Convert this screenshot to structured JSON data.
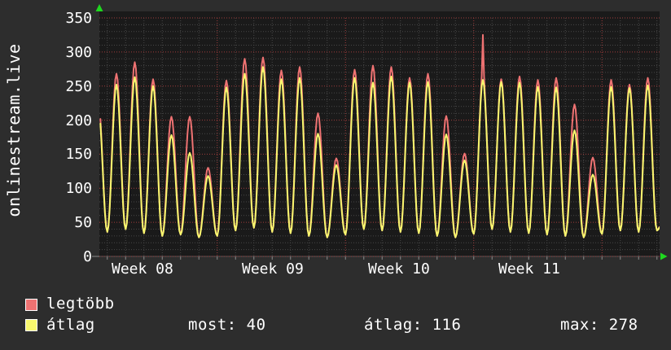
{
  "vertical_label": "onlinestream.live",
  "colors": {
    "page_bg": "#2d2d2d",
    "plot_bg": "#1a1a1a",
    "grid_major": "#a03c3c",
    "grid_minor": "#474747",
    "tick": "#8a8a8a",
    "axis_line": "#555555",
    "axis_arrow": "#1fd81f",
    "text": "#ffffff",
    "series_max": "#ee7272",
    "series_avg": "#f7f76e"
  },
  "y_axis": {
    "ticks": [
      "350",
      "300",
      "250",
      "200",
      "150",
      "100",
      "50",
      "0"
    ]
  },
  "x_axis": {
    "labels": [
      "Week 08",
      "Week 09",
      "Week 10",
      "Week 11"
    ]
  },
  "legend": {
    "items": [
      {
        "label": "legtöbb",
        "color": "#ee7272"
      },
      {
        "label": "átlag",
        "color": "#f7f76e"
      }
    ]
  },
  "stats": [
    {
      "label": "most",
      "value": 40,
      "text": "most: 40"
    },
    {
      "label": "átlag",
      "value": 116,
      "text": "átlag: 116"
    },
    {
      "label": "max",
      "value": 278,
      "text": "max: 278"
    }
  ],
  "chart_data": {
    "type": "line",
    "title": "",
    "vertical_label": "onlinestream.live",
    "xlabel": "",
    "ylabel": "onlinestream.live",
    "ylim": [
      0,
      350
    ],
    "y_tick_step": 50,
    "y_minor_step": 10,
    "x_labels": [
      "Week 08",
      "Week 09",
      "Week 10",
      "Week 11"
    ],
    "grid": true,
    "legend_position": "bottom-left",
    "series": [
      {
        "name": "legtöbb",
        "role": "maximum",
        "color": "#ee7272"
      },
      {
        "name": "átlag",
        "role": "average",
        "color": "#f7f76e"
      }
    ],
    "summary": {
      "most": 40,
      "átlag": 116,
      "max": 278
    },
    "days_per_week": 7,
    "days": [
      {
        "max": 230,
        "avg": 222
      },
      {
        "max": 268,
        "avg": 252
      },
      {
        "max": 285,
        "avg": 263
      },
      {
        "max": 260,
        "avg": 250
      },
      {
        "max": 205,
        "avg": 178
      },
      {
        "max": 205,
        "avg": 152
      },
      {
        "max": 130,
        "avg": 118
      },
      {
        "max": 258,
        "avg": 248
      },
      {
        "max": 290,
        "avg": 268
      },
      {
        "max": 292,
        "avg": 278
      },
      {
        "max": 273,
        "avg": 260
      },
      {
        "max": 278,
        "avg": 262
      },
      {
        "max": 210,
        "avg": 180
      },
      {
        "max": 144,
        "avg": 134
      },
      {
        "max": 274,
        "avg": 262
      },
      {
        "max": 280,
        "avg": 255
      },
      {
        "max": 278,
        "avg": 264
      },
      {
        "max": 262,
        "avg": 255
      },
      {
        "max": 268,
        "avg": 256
      },
      {
        "max": 206,
        "avg": 179
      },
      {
        "max": 151,
        "avg": 141
      },
      {
        "max": 325,
        "avg": 259,
        "shoulder": 265
      },
      {
        "max": 260,
        "avg": 256
      },
      {
        "max": 264,
        "avg": 255
      },
      {
        "max": 259,
        "avg": 249
      },
      {
        "max": 262,
        "avg": 248
      },
      {
        "max": 223,
        "avg": 185
      },
      {
        "max": 145,
        "avg": 120
      },
      {
        "max": 259,
        "avg": 249
      },
      {
        "max": 252,
        "avg": 247
      },
      {
        "max": 262,
        "avg": 251
      },
      {
        "max": 70,
        "avg": 65
      }
    ],
    "valleys": [
      38,
      36,
      40,
      34,
      30,
      32,
      28,
      30,
      38,
      42,
      36,
      34,
      30,
      28,
      32,
      40,
      38,
      36,
      34,
      30,
      28,
      33,
      40,
      36,
      34,
      32,
      30,
      28,
      33,
      38,
      36,
      38,
      40
    ]
  }
}
